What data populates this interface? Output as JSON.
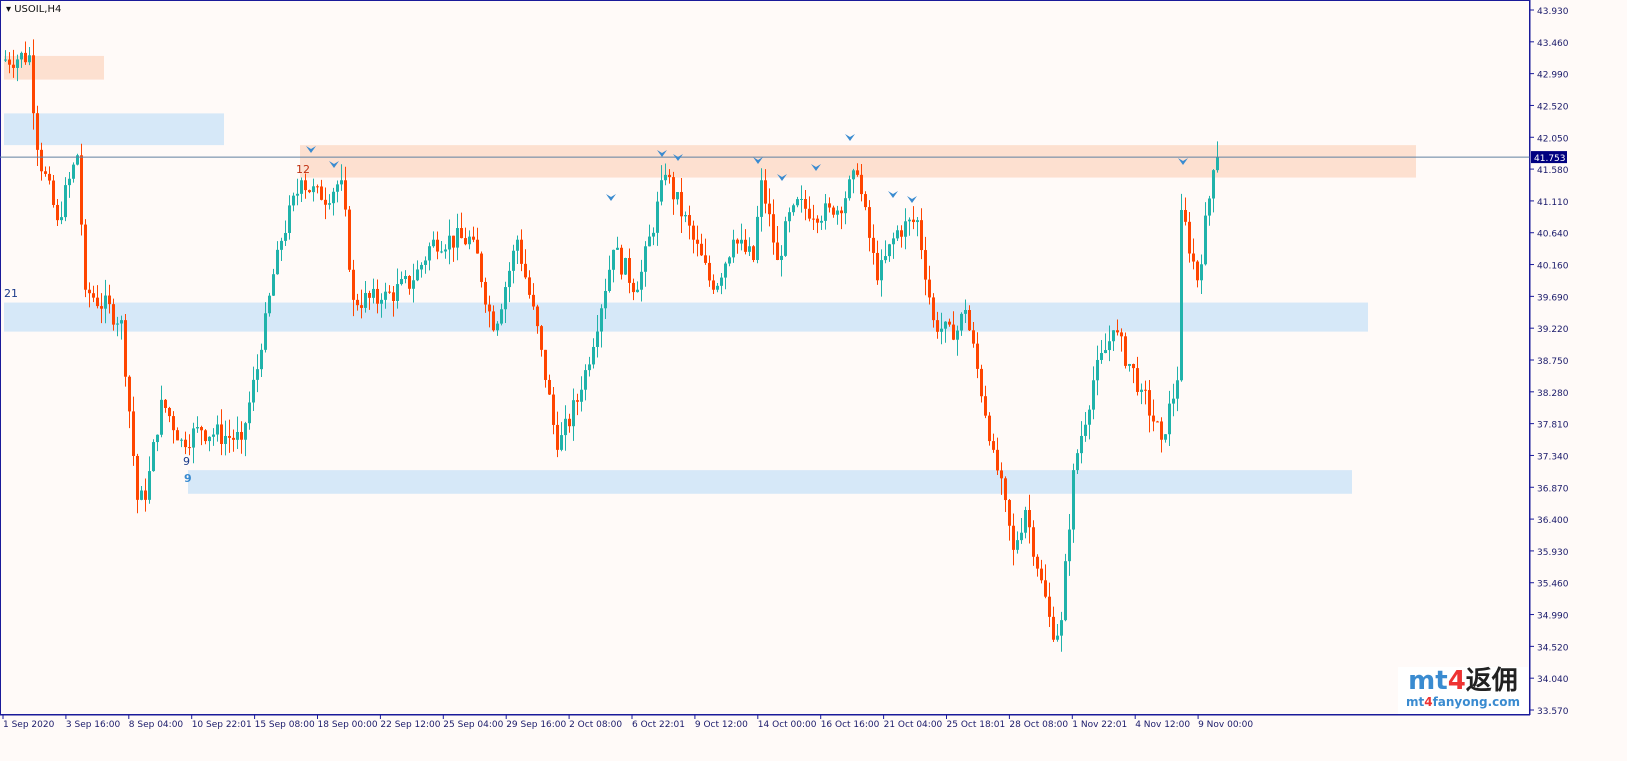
{
  "header": {
    "symbol_title": "USOIL,H4"
  },
  "colors": {
    "up": "#20b2aa",
    "down": "#ff4500",
    "zone_supply": "#fde0d0",
    "zone_demand": "#d6e8f8",
    "axis": "#1a1a9a",
    "bid_line": "#6080a0"
  },
  "labels": {
    "zone_a": "12",
    "zone_b": "21",
    "zone_c1": "9",
    "zone_c2": "9"
  },
  "watermark": {
    "brand_mt": "mt",
    "brand_4": "4",
    "brand_cn": "返佣",
    "site_a": "mt",
    "site_4": "4",
    "site_b": "fanyong.com"
  },
  "chart_data": {
    "type": "candlestick",
    "title": "USOIL,H4",
    "ylim": [
      33.57,
      43.93
    ],
    "y_ticks": [
      "43.930",
      "43.460",
      "42.990",
      "42.520",
      "42.050",
      "41.580",
      "41.110",
      "40.640",
      "40.160",
      "39.690",
      "39.220",
      "38.750",
      "38.280",
      "37.810",
      "37.340",
      "36.870",
      "36.400",
      "35.930",
      "35.460",
      "34.990",
      "34.520",
      "34.040",
      "33.570"
    ],
    "x_ticks": [
      "1 Sep 2020",
      "3 Sep 16:00",
      "8 Sep 04:00",
      "10 Sep 22:01",
      "15 Sep 08:00",
      "18 Sep 00:00",
      "22 Sep 12:00",
      "25 Sep 04:00",
      "29 Sep 16:00",
      "2 Oct 08:00",
      "6 Oct 22:01",
      "9 Oct 12:00",
      "14 Oct 00:00",
      "16 Oct 16:00",
      "21 Oct 04:00",
      "25 Oct 18:01",
      "28 Oct 08:00",
      "1 Nov 22:01",
      "4 Nov 12:00",
      "9 Nov 00:00"
    ],
    "current_price": "41.753",
    "close_path_bars_prices": [
      [
        0,
        43.19
      ],
      [
        7,
        43.26
      ],
      [
        9,
        41.86
      ],
      [
        14,
        40.82
      ],
      [
        19,
        41.78
      ],
      [
        21,
        39.79
      ],
      [
        30,
        39.34
      ],
      [
        34,
        36.68
      ],
      [
        36,
        36.68
      ],
      [
        40,
        38.16
      ],
      [
        45,
        37.57
      ],
      [
        50,
        37.71
      ],
      [
        60,
        37.57
      ],
      [
        65,
        38.9
      ],
      [
        69,
        40.38
      ],
      [
        75,
        41.41
      ],
      [
        80,
        41.12
      ],
      [
        85,
        41.41
      ],
      [
        88,
        39.64
      ],
      [
        95,
        39.64
      ],
      [
        103,
        39.93
      ],
      [
        108,
        40.53
      ],
      [
        118,
        40.53
      ],
      [
        123,
        39.19
      ],
      [
        129,
        40.53
      ],
      [
        135,
        38.9
      ],
      [
        139,
        37.42
      ],
      [
        145,
        38.31
      ],
      [
        153,
        40.38
      ],
      [
        159,
        39.79
      ],
      [
        166,
        41.49
      ],
      [
        173,
        40.53
      ],
      [
        178,
        39.79
      ],
      [
        183,
        40.53
      ],
      [
        188,
        40.23
      ],
      [
        190,
        41.41
      ],
      [
        194,
        40.23
      ],
      [
        198,
        41.04
      ],
      [
        208,
        40.9
      ],
      [
        214,
        41.49
      ],
      [
        219,
        39.93
      ],
      [
        224,
        40.67
      ],
      [
        229,
        40.82
      ],
      [
        233,
        39.34
      ],
      [
        238,
        39.05
      ],
      [
        241,
        39.49
      ],
      [
        248,
        37.42
      ],
      [
        253,
        35.94
      ],
      [
        256,
        36.53
      ],
      [
        260,
        35.49
      ],
      [
        263,
        34.61
      ],
      [
        265,
        34.9
      ],
      [
        268,
        37.12
      ],
      [
        273,
        38.45
      ],
      [
        278,
        39.19
      ],
      [
        285,
        38.31
      ],
      [
        290,
        37.57
      ],
      [
        294,
        38.45
      ],
      [
        295,
        40.97
      ],
      [
        299,
        39.93
      ],
      [
        303,
        41.56
      ],
      [
        304,
        41.75
      ]
    ],
    "zones": [
      {
        "kind": "supply",
        "top": 43.25,
        "bottom": 42.9,
        "from_bar": 0,
        "to_bar": 25
      },
      {
        "kind": "demand",
        "top": 42.4,
        "bottom": 41.93,
        "from_bar": 0,
        "to_bar": 55
      },
      {
        "kind": "supply",
        "top": 41.93,
        "bottom": 41.45,
        "from_bar": 74,
        "to_bar": 353
      },
      {
        "kind": "demand",
        "top": 39.6,
        "bottom": 39.17,
        "from_bar": 0,
        "to_bar": 341
      },
      {
        "kind": "demand",
        "top": 37.12,
        "bottom": 36.77,
        "from_bar": 46,
        "to_bar": 337
      }
    ]
  }
}
